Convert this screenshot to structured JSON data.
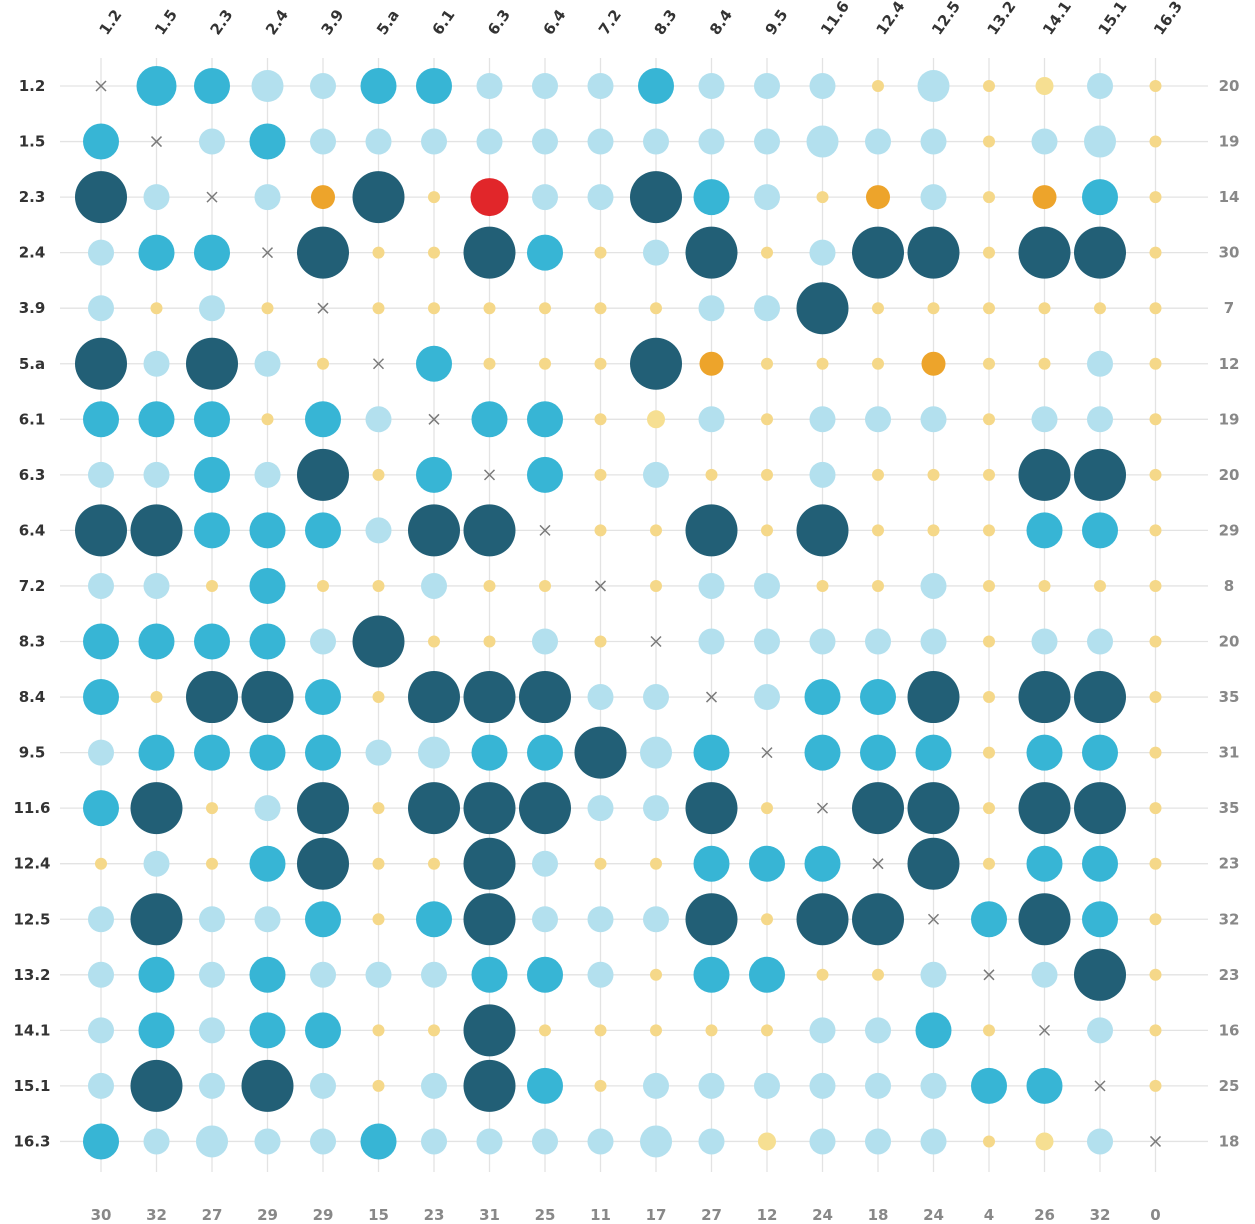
{
  "chart_data": {
    "type": "bubble-matrix",
    "title": "",
    "labels": [
      "1.2",
      "1.5",
      "2.3",
      "2.4",
      "3.9",
      "5.a",
      "6.1",
      "6.3",
      "6.4",
      "7.2",
      "8.3",
      "8.4",
      "9.5",
      "11.6",
      "12.4",
      "12.5",
      "13.2",
      "14.1",
      "15.1",
      "16.3"
    ],
    "row_totals": [
      "20",
      "19",
      "14",
      "30",
      "7",
      "12",
      "19",
      "20",
      "29",
      "8",
      "20",
      "35",
      "31",
      "35",
      "23",
      "32",
      "23",
      "16",
      "25",
      "18"
    ],
    "column_totals": [
      "30",
      "32",
      "27",
      "29",
      "29",
      "15",
      "23",
      "31",
      "25",
      "11",
      "17",
      "27",
      "12",
      "24",
      "18",
      "24",
      "4",
      "26",
      "32",
      "0"
    ],
    "legend_note": "Cell codes: 0 = diagonal (x), 1 = small yellow, 2 = large pale yellow, 3 = small orange, 4 = large red, 5 = small pale blue, 6 = large pale blue, 7 = medium blue, 8 = large blue, 9 = largest dark teal",
    "cells": [
      [
        0,
        8,
        7,
        6,
        5,
        7,
        7,
        5,
        5,
        5,
        7,
        5,
        5,
        5,
        1,
        6,
        1,
        2,
        5,
        1
      ],
      [
        7,
        0,
        5,
        7,
        5,
        5,
        5,
        5,
        5,
        5,
        5,
        5,
        5,
        6,
        5,
        5,
        1,
        5,
        6,
        1
      ],
      [
        9,
        5,
        0,
        5,
        3,
        9,
        1,
        4,
        5,
        5,
        9,
        7,
        5,
        1,
        3,
        5,
        1,
        3,
        7,
        1
      ],
      [
        5,
        7,
        7,
        0,
        9,
        1,
        1,
        9,
        7,
        1,
        5,
        9,
        1,
        5,
        9,
        9,
        1,
        9,
        9,
        1
      ],
      [
        5,
        1,
        5,
        1,
        0,
        1,
        1,
        1,
        1,
        1,
        1,
        5,
        5,
        9,
        1,
        1,
        1,
        1,
        1,
        1
      ],
      [
        9,
        5,
        9,
        5,
        1,
        0,
        7,
        1,
        1,
        1,
        9,
        3,
        1,
        1,
        1,
        3,
        1,
        1,
        5,
        1
      ],
      [
        7,
        7,
        7,
        1,
        7,
        5,
        0,
        7,
        7,
        1,
        2,
        5,
        1,
        5,
        5,
        5,
        1,
        5,
        5,
        1
      ],
      [
        5,
        5,
        7,
        5,
        9,
        1,
        7,
        0,
        7,
        1,
        5,
        1,
        1,
        5,
        1,
        1,
        1,
        9,
        9,
        1
      ],
      [
        9,
        9,
        7,
        7,
        7,
        5,
        9,
        9,
        0,
        1,
        1,
        9,
        1,
        9,
        1,
        1,
        1,
        7,
        7,
        1
      ],
      [
        5,
        5,
        1,
        7,
        1,
        1,
        5,
        1,
        1,
        0,
        1,
        5,
        5,
        1,
        1,
        5,
        1,
        1,
        1,
        1
      ],
      [
        7,
        7,
        7,
        7,
        5,
        9,
        1,
        1,
        5,
        1,
        0,
        5,
        5,
        5,
        5,
        5,
        1,
        5,
        5,
        1
      ],
      [
        7,
        1,
        9,
        9,
        7,
        1,
        9,
        9,
        9,
        5,
        5,
        0,
        5,
        7,
        7,
        9,
        1,
        9,
        9,
        1
      ],
      [
        5,
        7,
        7,
        7,
        7,
        5,
        6,
        7,
        7,
        9,
        6,
        7,
        0,
        7,
        7,
        7,
        1,
        7,
        7,
        1
      ],
      [
        7,
        9,
        1,
        5,
        9,
        1,
        9,
        9,
        9,
        5,
        5,
        9,
        1,
        0,
        9,
        9,
        1,
        9,
        9,
        1
      ],
      [
        1,
        5,
        1,
        7,
        9,
        1,
        1,
        9,
        5,
        1,
        1,
        7,
        7,
        7,
        0,
        9,
        1,
        7,
        7,
        1
      ],
      [
        5,
        9,
        5,
        5,
        7,
        1,
        7,
        9,
        5,
        5,
        5,
        9,
        1,
        9,
        9,
        0,
        7,
        9,
        7,
        1
      ],
      [
        5,
        7,
        5,
        7,
        5,
        5,
        5,
        7,
        7,
        5,
        1,
        7,
        7,
        1,
        1,
        5,
        0,
        5,
        9,
        1
      ],
      [
        5,
        7,
        5,
        7,
        7,
        1,
        1,
        9,
        1,
        1,
        1,
        1,
        1,
        5,
        5,
        7,
        1,
        0,
        5,
        1
      ],
      [
        5,
        9,
        5,
        9,
        5,
        1,
        5,
        9,
        7,
        1,
        5,
        5,
        5,
        5,
        5,
        5,
        7,
        7,
        0,
        1
      ],
      [
        7,
        5,
        6,
        5,
        5,
        7,
        5,
        5,
        5,
        5,
        6,
        5,
        2,
        5,
        5,
        5,
        1,
        2,
        5,
        0
      ]
    ],
    "styles": {
      "1": {
        "color": "#f5d889",
        "r": 6
      },
      "2": {
        "color": "#f6df92",
        "r": 9
      },
      "3": {
        "color": "#eda42b",
        "r": 12
      },
      "4": {
        "color": "#e1262a",
        "r": 19
      },
      "5": {
        "color": "#b3e0ee",
        "r": 13
      },
      "6": {
        "color": "#b3e0ee",
        "r": 16
      },
      "7": {
        "color": "#37b5d5",
        "r": 18
      },
      "8": {
        "color": "#37b5d5",
        "r": 20
      },
      "9": {
        "color": "#225f76",
        "r": 26
      }
    },
    "grid_color": "#e3e3e3",
    "diagonal_marker_color": "#7a7a7a"
  }
}
